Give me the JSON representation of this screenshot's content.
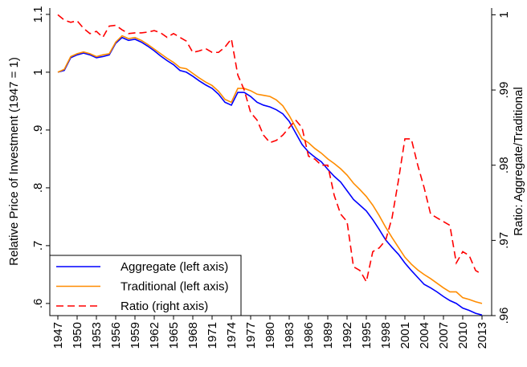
{
  "chart_data": {
    "type": "line",
    "y_label": "Relative Price of Investment (1947 = 1)",
    "y2_label": "Ratio: Aggregate/Traditional",
    "x": [
      1947,
      1948,
      1949,
      1950,
      1951,
      1952,
      1953,
      1954,
      1955,
      1956,
      1957,
      1958,
      1959,
      1960,
      1961,
      1962,
      1963,
      1964,
      1965,
      1966,
      1967,
      1968,
      1969,
      1970,
      1971,
      1972,
      1973,
      1974,
      1975,
      1976,
      1977,
      1978,
      1979,
      1980,
      1981,
      1982,
      1983,
      1984,
      1985,
      1986,
      1987,
      1988,
      1989,
      1990,
      1991,
      1992,
      1993,
      1994,
      1995,
      1996,
      1997,
      1998,
      1999,
      2000,
      2001,
      2002,
      2003,
      2004,
      2005,
      2006,
      2007,
      2008,
      2009,
      2010,
      2011,
      2012,
      2013
    ],
    "series": [
      {
        "name": "Aggregate (left axis)",
        "color": "#0000ff",
        "style": "solid",
        "axis": "y",
        "values": [
          1.0,
          1.003,
          1.025,
          1.03,
          1.033,
          1.03,
          1.025,
          1.027,
          1.03,
          1.05,
          1.06,
          1.055,
          1.057,
          1.052,
          1.045,
          1.037,
          1.028,
          1.02,
          1.013,
          1.003,
          1.0,
          0.993,
          0.985,
          0.978,
          0.972,
          0.962,
          0.948,
          0.943,
          0.965,
          0.965,
          0.958,
          0.948,
          0.943,
          0.94,
          0.935,
          0.928,
          0.915,
          0.895,
          0.875,
          0.862,
          0.853,
          0.845,
          0.832,
          0.82,
          0.81,
          0.795,
          0.78,
          0.77,
          0.76,
          0.745,
          0.728,
          0.71,
          0.697,
          0.685,
          0.67,
          0.657,
          0.645,
          0.633,
          0.627,
          0.62,
          0.612,
          0.605,
          0.6,
          0.592,
          0.588,
          0.583,
          0.58
        ]
      },
      {
        "name": "Traditional (left axis)",
        "color": "#ff8c00",
        "style": "solid",
        "axis": "y",
        "values": [
          1.0,
          1.005,
          1.027,
          1.032,
          1.035,
          1.032,
          1.027,
          1.03,
          1.032,
          1.052,
          1.063,
          1.058,
          1.06,
          1.055,
          1.048,
          1.04,
          1.032,
          1.024,
          1.017,
          1.008,
          1.006,
          0.998,
          0.99,
          0.983,
          0.977,
          0.967,
          0.953,
          0.948,
          0.972,
          0.972,
          0.968,
          0.962,
          0.96,
          0.958,
          0.952,
          0.942,
          0.925,
          0.905,
          0.885,
          0.878,
          0.868,
          0.86,
          0.85,
          0.842,
          0.833,
          0.822,
          0.808,
          0.797,
          0.785,
          0.77,
          0.752,
          0.732,
          0.714,
          0.697,
          0.68,
          0.668,
          0.658,
          0.65,
          0.643,
          0.635,
          0.627,
          0.62,
          0.62,
          0.61,
          0.607,
          0.603,
          0.6
        ]
      },
      {
        "name": "Ratio (right axis)",
        "color": "#ff0000",
        "style": "dashed",
        "axis": "y2",
        "values": [
          1.0,
          0.9993,
          0.999,
          0.9992,
          0.9982,
          0.9975,
          0.9978,
          0.997,
          0.9985,
          0.9986,
          0.998,
          0.9975,
          0.9976,
          0.9976,
          0.9977,
          0.9979,
          0.9976,
          0.997,
          0.9975,
          0.997,
          0.9965,
          0.995,
          0.9952,
          0.9955,
          0.995,
          0.995,
          0.9957,
          0.9968,
          0.992,
          0.99,
          0.987,
          0.986,
          0.984,
          0.983,
          0.9833,
          0.984,
          0.985,
          0.986,
          0.985,
          0.9812,
          0.9808,
          0.98,
          0.98,
          0.976,
          0.9735,
          0.9725,
          0.9665,
          0.966,
          0.9645,
          0.9685,
          0.969,
          0.97,
          0.973,
          0.978,
          0.9835,
          0.9835,
          0.98,
          0.977,
          0.9735,
          0.973,
          0.9725,
          0.972,
          0.967,
          0.9685,
          0.968,
          0.966,
          0.9655
        ]
      }
    ],
    "xlim": [
      1945.75,
      2014.5
    ],
    "xticks": [
      1947,
      1950,
      1953,
      1956,
      1959,
      1962,
      1965,
      1968,
      1971,
      1974,
      1977,
      1980,
      1983,
      1986,
      1989,
      1992,
      1995,
      1998,
      2001,
      2004,
      2007,
      2010,
      2013
    ],
    "ylim": [
      0.579,
      1.111
    ],
    "yticks": [
      {
        "value": 0.6,
        "label": ".6"
      },
      {
        "value": 0.7,
        "label": ".7"
      },
      {
        "value": 0.8,
        "label": ".8"
      },
      {
        "value": 0.9,
        "label": ".9"
      },
      1,
      1.1
    ],
    "y2lim": [
      0.96,
      1.0009
    ],
    "y2ticks": [
      {
        "value": 0.96,
        "label": ".96"
      },
      {
        "value": 0.97,
        "label": ".97"
      },
      {
        "value": 0.98,
        "label": ".98"
      },
      {
        "value": 0.99,
        "label": ".99"
      },
      1
    ],
    "legend": "bottom-left"
  }
}
